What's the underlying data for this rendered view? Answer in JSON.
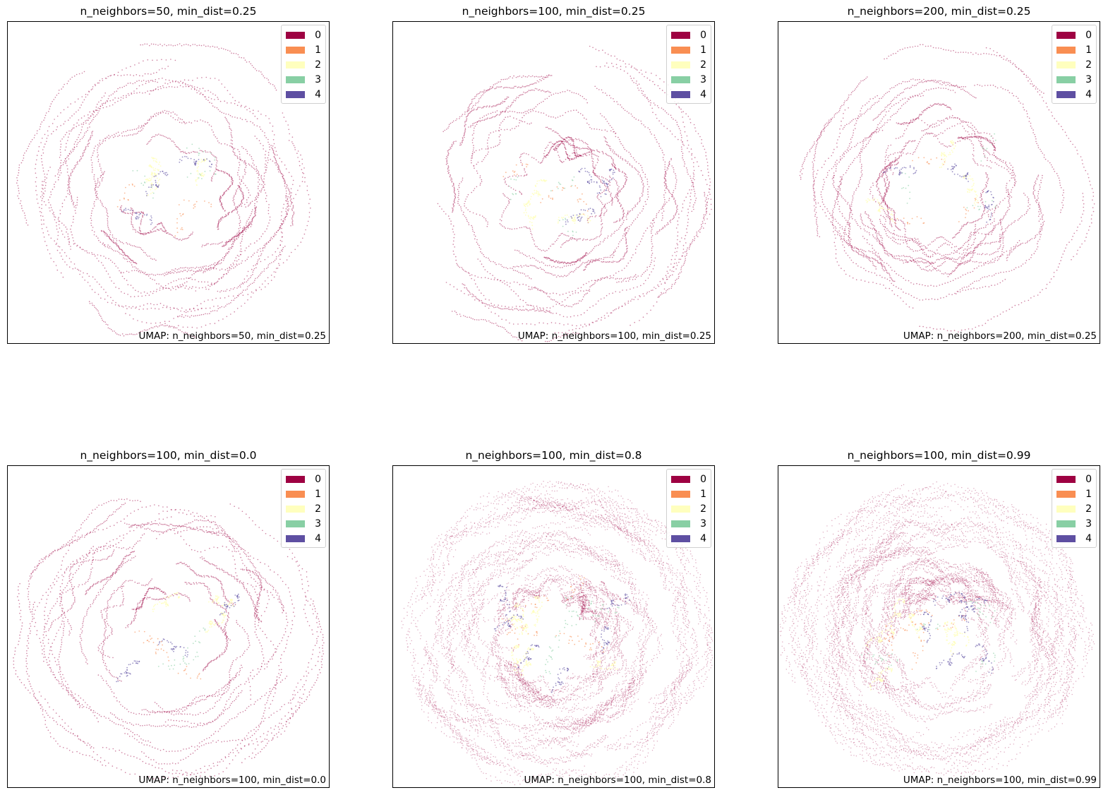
{
  "legend": {
    "labels": [
      "0",
      "1",
      "2",
      "3",
      "4"
    ],
    "colors": [
      "#9e0142",
      "#f98e52",
      "#ffffbe",
      "#88cfa4",
      "#5e4fa2"
    ]
  },
  "chart_data": [
    {
      "type": "scatter",
      "title": "n_neighbors=50, min_dist=0.25",
      "caption": "UMAP: n_neighbors=50, min_dist=0.25",
      "n_neighbors": 50,
      "min_dist": 0.25,
      "legend_title": "",
      "legend_placement": "top-right",
      "xticks": [],
      "yticks": [],
      "series": [
        {
          "name": "0"
        },
        {
          "name": "1"
        },
        {
          "name": "2"
        },
        {
          "name": "3"
        },
        {
          "name": "4"
        }
      ]
    },
    {
      "type": "scatter",
      "title": "n_neighbors=100, min_dist=0.25",
      "caption": "UMAP: n_neighbors=100, min_dist=0.25",
      "n_neighbors": 100,
      "min_dist": 0.25,
      "legend_title": "",
      "legend_placement": "top-right",
      "xticks": [],
      "yticks": [],
      "series": [
        {
          "name": "0"
        },
        {
          "name": "1"
        },
        {
          "name": "2"
        },
        {
          "name": "3"
        },
        {
          "name": "4"
        }
      ]
    },
    {
      "type": "scatter",
      "title": "n_neighbors=200, min_dist=0.25",
      "caption": "UMAP: n_neighbors=200, min_dist=0.25",
      "n_neighbors": 200,
      "min_dist": 0.25,
      "legend_title": "",
      "legend_placement": "top-right",
      "xticks": [],
      "yticks": [],
      "series": [
        {
          "name": "0"
        },
        {
          "name": "1"
        },
        {
          "name": "2"
        },
        {
          "name": "3"
        },
        {
          "name": "4"
        }
      ]
    },
    {
      "type": "scatter",
      "title": "n_neighbors=100, min_dist=0.0",
      "caption": "UMAP: n_neighbors=100, min_dist=0.0",
      "n_neighbors": 100,
      "min_dist": 0.0,
      "legend_title": "",
      "legend_placement": "top-right",
      "xticks": [],
      "yticks": [],
      "series": [
        {
          "name": "0"
        },
        {
          "name": "1"
        },
        {
          "name": "2"
        },
        {
          "name": "3"
        },
        {
          "name": "4"
        }
      ]
    },
    {
      "type": "scatter",
      "title": "n_neighbors=100, min_dist=0.8",
      "caption": "UMAP: n_neighbors=100, min_dist=0.8",
      "n_neighbors": 100,
      "min_dist": 0.8,
      "legend_title": "",
      "legend_placement": "top-right",
      "xticks": [],
      "yticks": [],
      "series": [
        {
          "name": "0"
        },
        {
          "name": "1"
        },
        {
          "name": "2"
        },
        {
          "name": "3"
        },
        {
          "name": "4"
        }
      ]
    },
    {
      "type": "scatter",
      "title": "n_neighbors=100, min_dist=0.99",
      "caption": "UMAP: n_neighbors=100, min_dist=0.99",
      "n_neighbors": 100,
      "min_dist": 0.99,
      "legend_title": "",
      "legend_placement": "top-right",
      "xticks": [],
      "yticks": [],
      "series": [
        {
          "name": "0"
        },
        {
          "name": "1"
        },
        {
          "name": "2"
        },
        {
          "name": "3"
        },
        {
          "name": "4"
        }
      ]
    }
  ]
}
